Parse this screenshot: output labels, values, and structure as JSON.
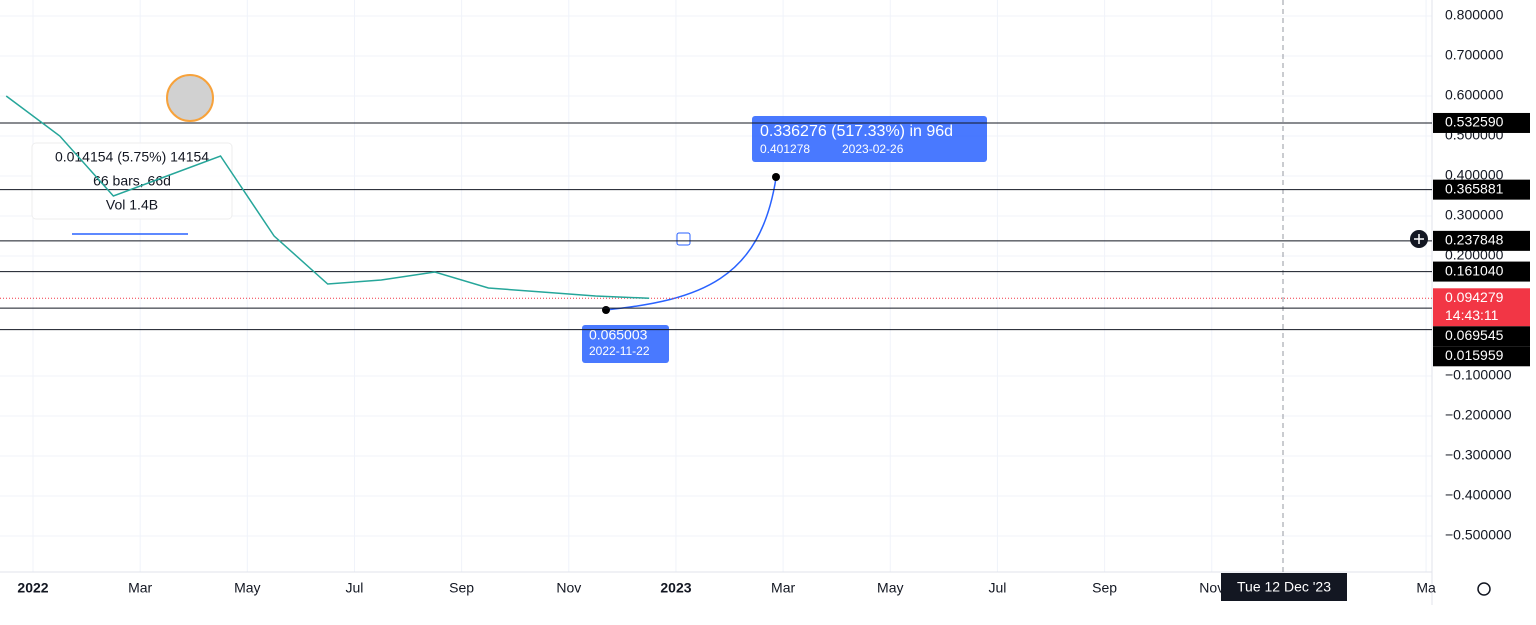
{
  "chart_data": {
    "type": "line",
    "x": [
      "2021-12",
      "2022-01",
      "2022-02",
      "2022-03",
      "2022-04",
      "2022-05",
      "2022-06",
      "2022-07",
      "2022-08",
      "2022-09",
      "2022-10",
      "2022-11",
      "2022-12"
    ],
    "series": [
      {
        "color": "#26a69a",
        "values": [
          0.6,
          0.5,
          0.35,
          0.4,
          0.45,
          0.25,
          0.13,
          0.14,
          0.16,
          0.12,
          0.11,
          0.1,
          0.094279
        ]
      }
    ],
    "ylim": [
      -0.59,
      0.84
    ],
    "yticks": [
      {
        "value": 0.8,
        "label": "0.800000"
      },
      {
        "value": 0.7,
        "label": "0.700000"
      },
      {
        "value": 0.6,
        "label": "0.600000"
      },
      {
        "value": 0.5,
        "label": "0.500000"
      },
      {
        "value": 0.4,
        "label": "0.400000"
      },
      {
        "value": 0.3,
        "label": "0.300000"
      },
      {
        "value": 0.2,
        "label": "0.200000"
      },
      {
        "value": -0.1,
        "label": "−0.100000"
      },
      {
        "value": -0.2,
        "label": "−0.200000"
      },
      {
        "value": -0.3,
        "label": "−0.300000"
      },
      {
        "value": -0.4,
        "label": "−0.400000"
      },
      {
        "value": -0.5,
        "label": "−0.500000"
      }
    ],
    "xticks": [
      {
        "value": "2022-01",
        "label": "2022"
      },
      {
        "value": "2022-03",
        "label": "Mar"
      },
      {
        "value": "2022-05",
        "label": "May"
      },
      {
        "value": "2022-07",
        "label": "Jul"
      },
      {
        "value": "2022-09",
        "label": "Sep"
      },
      {
        "value": "2022-11",
        "label": "Nov"
      },
      {
        "value": "2023-01",
        "label": "2023"
      },
      {
        "value": "2023-03",
        "label": "Mar"
      },
      {
        "value": "2023-05",
        "label": "May"
      },
      {
        "value": "2023-07",
        "label": "Jul"
      },
      {
        "value": "2023-09",
        "label": "Sep"
      },
      {
        "value": "2023-11",
        "label": "Nov"
      },
      {
        "value": "2024-03",
        "label": "Ma"
      }
    ],
    "grid": true,
    "levels": [
      {
        "value": 0.53259,
        "label": "0.532590"
      },
      {
        "value": 0.365881,
        "label": "0.365881"
      },
      {
        "value": 0.237848,
        "label": "0.237848"
      },
      {
        "value": 0.16104,
        "label": "0.161040"
      },
      {
        "value": 0.069545,
        "label": "0.069545"
      },
      {
        "value": 0.015959,
        "label": "0.015959"
      }
    ],
    "last_price": {
      "value": 0.094279,
      "label": "0.094279",
      "countdown": "14:43:11",
      "color": "#f23645"
    },
    "projection": {
      "text": "0.336276 (517.33%) in 96d",
      "target": "0.401278",
      "date": "2023-02-26"
    },
    "low": {
      "price": "0.065003",
      "date": "2022-11-22"
    },
    "measure": {
      "line1": "0.014154 (5.75%) 14154",
      "line2": "66 bars, 66d",
      "line3": "Vol 1.4B"
    },
    "crosshair_date": "Tue 12 Dec '23"
  }
}
